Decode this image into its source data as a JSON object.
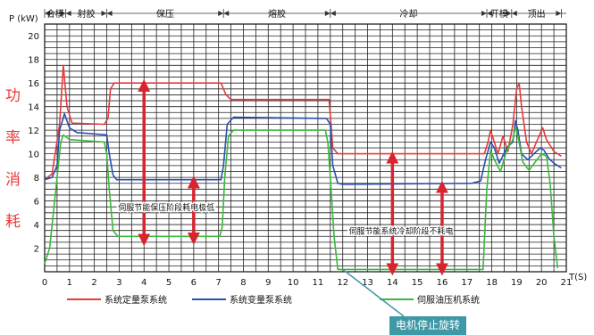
{
  "chart_data": {
    "type": "line",
    "y_axis_label": "P (kW)",
    "x_axis_label": "T(S)",
    "xlim": [
      0,
      21
    ],
    "ylim": [
      0,
      21
    ],
    "x_ticks": [
      0,
      1,
      2,
      3,
      4,
      5,
      6,
      7,
      8,
      9,
      10,
      11,
      12,
      13,
      14,
      15,
      16,
      17,
      18,
      19,
      20,
      21
    ],
    "y_ticks": [
      2,
      4,
      6,
      8,
      10,
      12,
      14,
      16,
      18,
      20
    ],
    "grid": true,
    "side_label_chars": [
      "功",
      "率",
      "消",
      "耗"
    ],
    "phases": [
      {
        "label": "合模",
        "start": 0.0,
        "end": 0.85
      },
      {
        "label": "射胶",
        "start": 0.85,
        "end": 2.5
      },
      {
        "label": "保压",
        "start": 2.5,
        "end": 7.2
      },
      {
        "label": "熔胶",
        "start": 7.2,
        "end": 11.5
      },
      {
        "label": "冷却",
        "start": 11.5,
        "end": 17.8
      },
      {
        "label": "开模",
        "start": 17.8,
        "end": 18.8
      },
      {
        "label": "顶出",
        "start": 18.8,
        "end": 20.8
      }
    ],
    "series": [
      {
        "name": "系统定量泵系统",
        "color": "#e83a3a",
        "points": [
          [
            0,
            7.8
          ],
          [
            0.3,
            8.3
          ],
          [
            0.6,
            12.5
          ],
          [
            0.75,
            17.5
          ],
          [
            0.9,
            14
          ],
          [
            1.1,
            12.6
          ],
          [
            2.4,
            12.5
          ],
          [
            2.55,
            13
          ],
          [
            2.65,
            15.5
          ],
          [
            2.8,
            16
          ],
          [
            7.1,
            16
          ],
          [
            7.3,
            15
          ],
          [
            7.5,
            14.6
          ],
          [
            11.45,
            14.6
          ],
          [
            11.6,
            10.5
          ],
          [
            11.8,
            10
          ],
          [
            17.7,
            10
          ],
          [
            17.85,
            11
          ],
          [
            17.95,
            12
          ],
          [
            18.1,
            11
          ],
          [
            18.25,
            10
          ],
          [
            18.45,
            11.5
          ],
          [
            18.65,
            10.2
          ],
          [
            18.85,
            12.5
          ],
          [
            19.0,
            15.5
          ],
          [
            19.1,
            16
          ],
          [
            19.2,
            14
          ],
          [
            19.4,
            11
          ],
          [
            19.6,
            10
          ],
          [
            19.9,
            11.5
          ],
          [
            20.05,
            12.2
          ],
          [
            20.2,
            11.2
          ],
          [
            20.5,
            10.2
          ],
          [
            20.8,
            9.8
          ]
        ]
      },
      {
        "name": "系统变量泵系统",
        "color": "#2a4fb0",
        "points": [
          [
            0,
            7.8
          ],
          [
            0.3,
            8
          ],
          [
            0.5,
            9
          ],
          [
            0.6,
            12
          ],
          [
            0.8,
            13.4
          ],
          [
            1.0,
            12.2
          ],
          [
            1.3,
            11.8
          ],
          [
            2.5,
            11.6
          ],
          [
            2.6,
            10
          ],
          [
            2.75,
            8.2
          ],
          [
            2.9,
            7.8
          ],
          [
            7.1,
            7.8
          ],
          [
            7.2,
            9
          ],
          [
            7.35,
            12.5
          ],
          [
            7.6,
            13.1
          ],
          [
            11.35,
            13
          ],
          [
            11.5,
            12.5
          ],
          [
            11.6,
            9
          ],
          [
            11.8,
            7.5
          ],
          [
            12.0,
            7.4
          ],
          [
            17.2,
            7.5
          ],
          [
            17.55,
            7.7
          ],
          [
            17.75,
            9.5
          ],
          [
            17.95,
            11
          ],
          [
            18.1,
            10.5
          ],
          [
            18.3,
            9.2
          ],
          [
            18.6,
            10.5
          ],
          [
            18.85,
            11
          ],
          [
            18.95,
            12.8
          ],
          [
            19.05,
            12
          ],
          [
            19.2,
            10
          ],
          [
            19.45,
            9.5
          ],
          [
            19.7,
            10
          ],
          [
            19.95,
            10.5
          ],
          [
            20.1,
            10.3
          ],
          [
            20.3,
            9.6
          ],
          [
            20.5,
            9.2
          ],
          [
            20.8,
            8.8
          ]
        ]
      },
      {
        "name": "伺服油压机系统",
        "color": "#3ab83a",
        "points": [
          [
            0,
            0.7
          ],
          [
            0.2,
            2
          ],
          [
            0.5,
            8
          ],
          [
            0.65,
            11
          ],
          [
            0.75,
            11.6
          ],
          [
            1.0,
            11.2
          ],
          [
            2.4,
            11
          ],
          [
            2.5,
            10
          ],
          [
            2.6,
            7
          ],
          [
            2.75,
            3.5
          ],
          [
            2.95,
            3.0
          ],
          [
            7.05,
            3.0
          ],
          [
            7.15,
            3.8
          ],
          [
            7.25,
            8
          ],
          [
            7.4,
            11.5
          ],
          [
            7.6,
            12
          ],
          [
            11.3,
            12
          ],
          [
            11.4,
            11
          ],
          [
            11.5,
            8
          ],
          [
            11.65,
            3
          ],
          [
            11.8,
            0.2
          ],
          [
            17.65,
            0.2
          ],
          [
            17.8,
            7
          ],
          [
            17.95,
            10.3
          ],
          [
            18.1,
            9.5
          ],
          [
            18.35,
            8.5
          ],
          [
            18.6,
            10.3
          ],
          [
            18.85,
            11.2
          ],
          [
            18.95,
            12.3
          ],
          [
            19.05,
            11.5
          ],
          [
            19.25,
            9.3
          ],
          [
            19.5,
            8.6
          ],
          [
            19.75,
            9.3
          ],
          [
            20.0,
            10
          ],
          [
            20.2,
            9.8
          ],
          [
            20.35,
            7.5
          ],
          [
            20.5,
            3
          ],
          [
            20.65,
            0.3
          ]
        ]
      }
    ],
    "annotations": [
      {
        "text": "伺服节能保压阶段耗电极低",
        "x": 4.9,
        "y": 5.2
      },
      {
        "text": "伺服节能系统冷却阶段不耗电",
        "x": 14.35,
        "y": 3.2
      }
    ],
    "arrows": [
      {
        "x": 4.0,
        "y1": 2.7,
        "y2": 15.8,
        "color": "#d9232e"
      },
      {
        "x": 6.0,
        "y1": 2.8,
        "y2": 7.6,
        "color": "#d9232e"
      },
      {
        "x": 14.0,
        "y1": 0.2,
        "y2": 9.7,
        "color": "#d9232e"
      },
      {
        "x": 16.0,
        "y1": 0.2,
        "y2": 7.2,
        "color": "#d9232e"
      }
    ]
  },
  "callout": {
    "text": "电机停止旋转",
    "background": "#3f98a6",
    "target_x": 12.0,
    "target_y": 0.2
  }
}
